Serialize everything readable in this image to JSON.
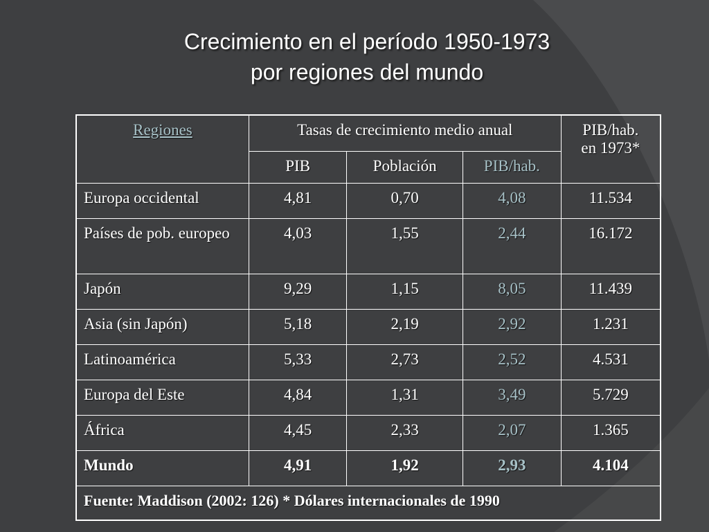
{
  "title": {
    "line1": "Crecimiento en el período 1950-1973",
    "line2": "por regiones del mundo"
  },
  "table": {
    "header": {
      "regions": "Regiones",
      "group": "Tasas de crecimiento medio anual",
      "pib_hab_1973_line1": "PIB/hab.",
      "pib_hab_1973_line2": "en 1973*",
      "pib": "PIB",
      "poblacion": "Población",
      "pib_hab": "PIB/hab."
    },
    "rows": [
      {
        "region": "Europa occidental",
        "pib": "4,81",
        "poblacion": "0,70",
        "pib_hab": "4,08",
        "pib_hab_1973": "11.534"
      },
      {
        "region": "Países de pob. europeo",
        "pib": "4,03",
        "poblacion": "1,55",
        "pib_hab": "2,44",
        "pib_hab_1973": "16.172"
      },
      {
        "region": "Japón",
        "pib": "9,29",
        "poblacion": "1,15",
        "pib_hab": "8,05",
        "pib_hab_1973": "11.439"
      },
      {
        "region": "Asia (sin Japón)",
        "pib": "5,18",
        "poblacion": "2,19",
        "pib_hab": "2,92",
        "pib_hab_1973": "1.231"
      },
      {
        "region": "Latinoamérica",
        "pib": "5,33",
        "poblacion": "2,73",
        "pib_hab": "2,52",
        "pib_hab_1973": "4.531"
      },
      {
        "region": "Europa del Este",
        "pib": "4,84",
        "poblacion": "1,31",
        "pib_hab": "3,49",
        "pib_hab_1973": "5.729"
      },
      {
        "region": "África",
        "pib": "4,45",
        "poblacion": "2,33",
        "pib_hab": "2,07",
        "pib_hab_1973": "1.365"
      },
      {
        "region": "Mundo",
        "pib": "4,91",
        "poblacion": "1,92",
        "pib_hab": "2,93",
        "pib_hab_1973": "4.104"
      }
    ],
    "footer": "Fuente: Maddison (2002: 126) * Dólares internacionales de 1990"
  },
  "colors": {
    "background": "#3e3f41",
    "accent": "#a7c1c7",
    "text": "#ffffff"
  }
}
